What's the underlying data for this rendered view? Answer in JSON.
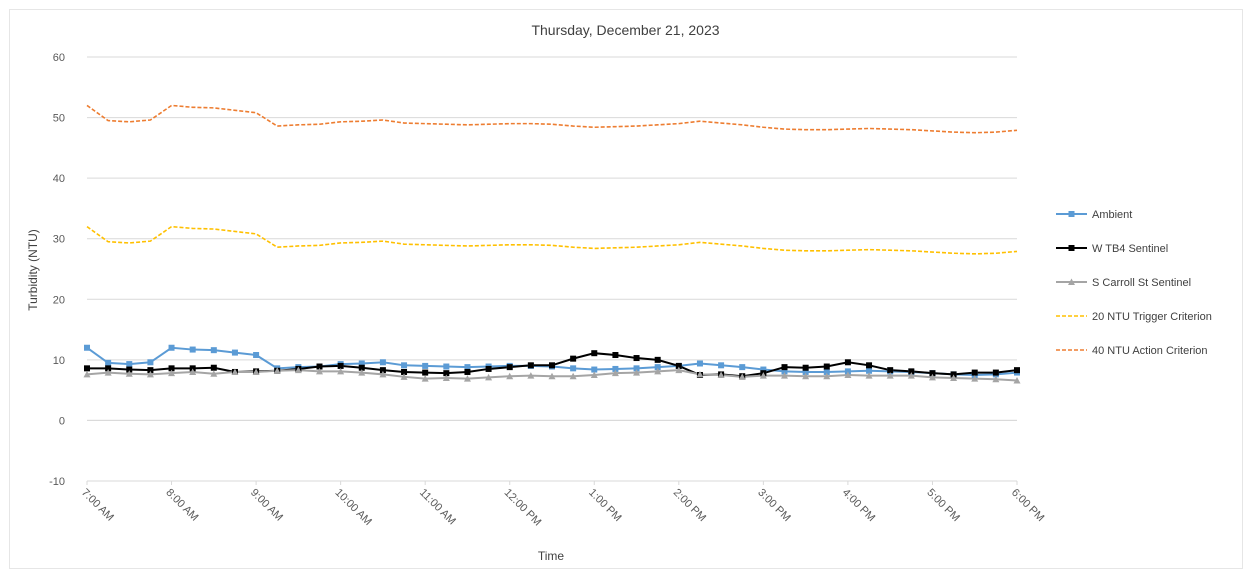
{
  "chart_data": {
    "type": "line",
    "title": "Thursday, December 21, 2023",
    "xlabel": "Time",
    "ylabel": "Turbidity (NTU)",
    "ylim": [
      -10,
      60
    ],
    "yticks": [
      -10,
      0,
      10,
      20,
      30,
      40,
      50,
      60
    ],
    "xlim": [
      7,
      18
    ],
    "xticks": [
      {
        "v": 7,
        "label": "7:00 AM"
      },
      {
        "v": 8,
        "label": "8:00 AM"
      },
      {
        "v": 9,
        "label": "9:00 AM"
      },
      {
        "v": 10,
        "label": "10:00 AM"
      },
      {
        "v": 11,
        "label": "11:00 AM"
      },
      {
        "v": 12,
        "label": "12:00 PM"
      },
      {
        "v": 13,
        "label": "1:00 PM"
      },
      {
        "v": 14,
        "label": "2:00 PM"
      },
      {
        "v": 15,
        "label": "3:00 PM"
      },
      {
        "v": 16,
        "label": "4:00 PM"
      },
      {
        "v": 17,
        "label": "5:00 PM"
      },
      {
        "v": 18,
        "label": "6:00 PM"
      }
    ],
    "grid": true,
    "legend_position": "right",
    "x": [
      7.0,
      7.25,
      7.5,
      7.75,
      8.0,
      8.25,
      8.5,
      8.75,
      9.0,
      9.25,
      9.5,
      9.75,
      10.0,
      10.25,
      10.5,
      10.75,
      11.0,
      11.25,
      11.5,
      11.75,
      12.0,
      12.25,
      12.5,
      12.75,
      13.0,
      13.25,
      13.5,
      13.75,
      14.0,
      14.25,
      14.5,
      14.75,
      15.0,
      15.25,
      15.5,
      15.75,
      16.0,
      16.25,
      16.5,
      16.75,
      17.0,
      17.25,
      17.5,
      17.75,
      18.0
    ],
    "series": [
      {
        "name": "Ambient",
        "color": "#5b9bd5",
        "style": "solid",
        "marker": "square",
        "values": [
          12,
          9.5,
          9.3,
          9.6,
          12,
          11.7,
          11.6,
          11.2,
          10.8,
          8.6,
          8.8,
          8.9,
          9.3,
          9.4,
          9.6,
          9.1,
          9.0,
          8.9,
          8.8,
          8.9,
          9.0,
          9.0,
          8.9,
          8.6,
          8.4,
          8.5,
          8.6,
          8.8,
          9.0,
          9.4,
          9.1,
          8.8,
          8.4,
          8.1,
          8.0,
          8.0,
          8.1,
          8.2,
          8.1,
          8.0,
          7.8,
          7.6,
          7.5,
          7.6,
          7.9
        ]
      },
      {
        "name": "W TB4 Sentinel",
        "color": "#000000",
        "style": "solid",
        "marker": "square",
        "values": [
          8.6,
          8.6,
          8.4,
          8.3,
          8.6,
          8.6,
          8.7,
          8.0,
          8.1,
          8.2,
          8.5,
          8.9,
          9.0,
          8.7,
          8.3,
          8.0,
          7.9,
          7.8,
          8.0,
          8.5,
          8.8,
          9.1,
          9.1,
          10.2,
          11.1,
          10.8,
          10.3,
          10.0,
          9.0,
          7.5,
          7.6,
          7.3,
          7.8,
          8.8,
          8.7,
          8.9,
          9.6,
          9.1,
          8.3,
          8.1,
          7.8,
          7.6,
          7.9,
          7.9,
          8.3
        ]
      },
      {
        "name": "S Carroll St Sentinel",
        "color": "#a5a5a5",
        "style": "solid",
        "marker": "triangle",
        "values": [
          7.6,
          7.9,
          7.7,
          7.6,
          7.8,
          8.0,
          7.7,
          8.0,
          8.0,
          8.2,
          8.3,
          8.1,
          8.1,
          7.9,
          7.6,
          7.2,
          6.9,
          7.0,
          6.9,
          7.1,
          7.3,
          7.4,
          7.3,
          7.3,
          7.5,
          7.8,
          7.9,
          8.1,
          8.3,
          7.6,
          7.5,
          7.2,
          7.4,
          7.4,
          7.3,
          7.3,
          7.5,
          7.4,
          7.4,
          7.4,
          7.1,
          7.0,
          6.9,
          6.8,
          6.6
        ]
      },
      {
        "name": "20 NTU Trigger Criterion",
        "color": "#ffc000",
        "style": "dashed",
        "marker": "none",
        "values": [
          32,
          29.5,
          29.3,
          29.6,
          32,
          31.7,
          31.6,
          31.2,
          30.8,
          28.6,
          28.8,
          28.9,
          29.3,
          29.4,
          29.6,
          29.1,
          29.0,
          28.9,
          28.8,
          28.9,
          29.0,
          29.0,
          28.9,
          28.6,
          28.4,
          28.5,
          28.6,
          28.8,
          29.0,
          29.4,
          29.1,
          28.8,
          28.4,
          28.1,
          28.0,
          28.0,
          28.1,
          28.2,
          28.1,
          28.0,
          27.8,
          27.6,
          27.5,
          27.6,
          27.9
        ]
      },
      {
        "name": "40 NTU Action Criterion",
        "color": "#ed7d31",
        "style": "dashed",
        "marker": "none",
        "values": [
          52,
          49.5,
          49.3,
          49.6,
          52,
          51.7,
          51.6,
          51.2,
          50.8,
          48.6,
          48.8,
          48.9,
          49.3,
          49.4,
          49.6,
          49.1,
          49.0,
          48.9,
          48.8,
          48.9,
          49.0,
          49.0,
          48.9,
          48.6,
          48.4,
          48.5,
          48.6,
          48.8,
          49.0,
          49.4,
          49.1,
          48.8,
          48.4,
          48.1,
          48.0,
          48.0,
          48.1,
          48.2,
          48.1,
          48.0,
          47.8,
          47.6,
          47.5,
          47.6,
          47.9
        ]
      }
    ]
  }
}
